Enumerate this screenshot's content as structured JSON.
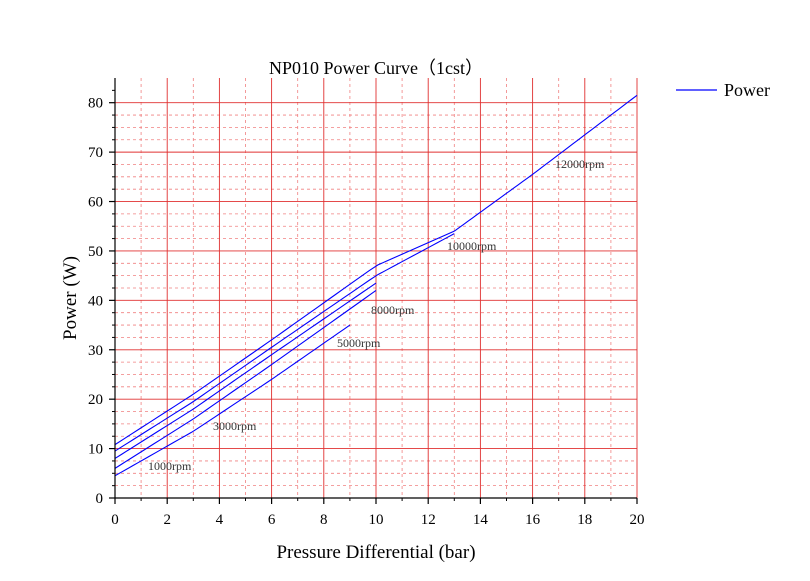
{
  "chart_data": {
    "type": "line",
    "title": "NP010 Power Curve（1cst）",
    "xlabel": "Pressure Differential (bar)",
    "ylabel": "Power (W)",
    "xlim": [
      0,
      20
    ],
    "ylim": [
      0,
      85
    ],
    "xticks": [
      0,
      2,
      4,
      6,
      8,
      10,
      12,
      14,
      16,
      18,
      20
    ],
    "yticks": [
      0,
      10,
      20,
      30,
      40,
      50,
      60,
      70,
      80
    ],
    "grid": true,
    "legend": {
      "position": "top-right",
      "entries": [
        "Power"
      ]
    },
    "line_color": "#0000ff",
    "major_grid_color": "#e03030",
    "minor_grid_color": "#f08080",
    "series": [
      {
        "name": "1000rpm",
        "label": "1000rpm",
        "x": [
          0,
          3,
          6,
          9
        ],
        "y": [
          4.5,
          13.5,
          24,
          35
        ]
      },
      {
        "name": "3000rpm",
        "label": "3000rpm",
        "x": [
          0,
          3,
          6,
          10
        ],
        "y": [
          6,
          16,
          27,
          42
        ]
      },
      {
        "name": "5000rpm",
        "label": "5000rpm",
        "x": [
          0,
          3,
          6,
          10
        ],
        "y": [
          8,
          18,
          29,
          43.5
        ]
      },
      {
        "name": "8000rpm",
        "label": "8000rpm",
        "x": [
          0,
          3,
          6,
          10,
          13
        ],
        "y": [
          9.5,
          19.5,
          30.5,
          45,
          53.5
        ]
      },
      {
        "name": "10000rpm",
        "label": "10000rpm",
        "x": [
          0,
          3,
          6,
          10,
          13
        ],
        "y": [
          10.8,
          21,
          32,
          47,
          54
        ]
      },
      {
        "name": "12000rpm",
        "label": "12000rpm",
        "x": [
          13,
          16,
          18,
          20
        ],
        "y": [
          54,
          65.5,
          73.5,
          81.5
        ]
      }
    ]
  }
}
